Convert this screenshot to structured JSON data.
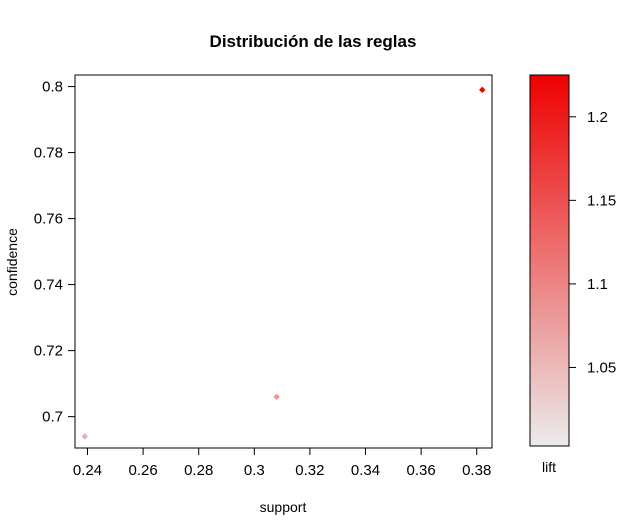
{
  "chart_data": {
    "type": "scatter",
    "title": "Distribución de las reglas",
    "xlabel": "support",
    "ylabel": "confidence",
    "xlim": [
      0.2355,
      0.3855
    ],
    "ylim": [
      0.6905,
      0.8035
    ],
    "x_ticks": [
      0.24,
      0.26,
      0.28,
      0.3,
      0.32,
      0.34,
      0.36,
      0.38
    ],
    "x_tick_labels": [
      "0.24",
      "0.26",
      "0.28",
      "0.3",
      "0.32",
      "0.34",
      "0.36",
      "0.38"
    ],
    "y_ticks": [
      0.7,
      0.72,
      0.74,
      0.76,
      0.78,
      0.8
    ],
    "y_tick_labels": [
      "0.7",
      "0.72",
      "0.74",
      "0.76",
      "0.78",
      "0.8"
    ],
    "grid": false,
    "points": [
      {
        "x": 0.239,
        "y": 0.694,
        "lift": 1.062
      },
      {
        "x": 0.308,
        "y": 0.706,
        "lift": 1.085
      },
      {
        "x": 0.382,
        "y": 0.799,
        "lift": 1.222
      }
    ],
    "colorbar": {
      "label": "lift",
      "range": [
        1.003,
        1.225
      ],
      "ticks": [
        1.05,
        1.1,
        1.15,
        1.2
      ],
      "tick_labels": [
        "1.05",
        "1.1",
        "1.15",
        "1.2"
      ],
      "color_low": "#ebebeb",
      "color_high": "#ee0000"
    }
  }
}
